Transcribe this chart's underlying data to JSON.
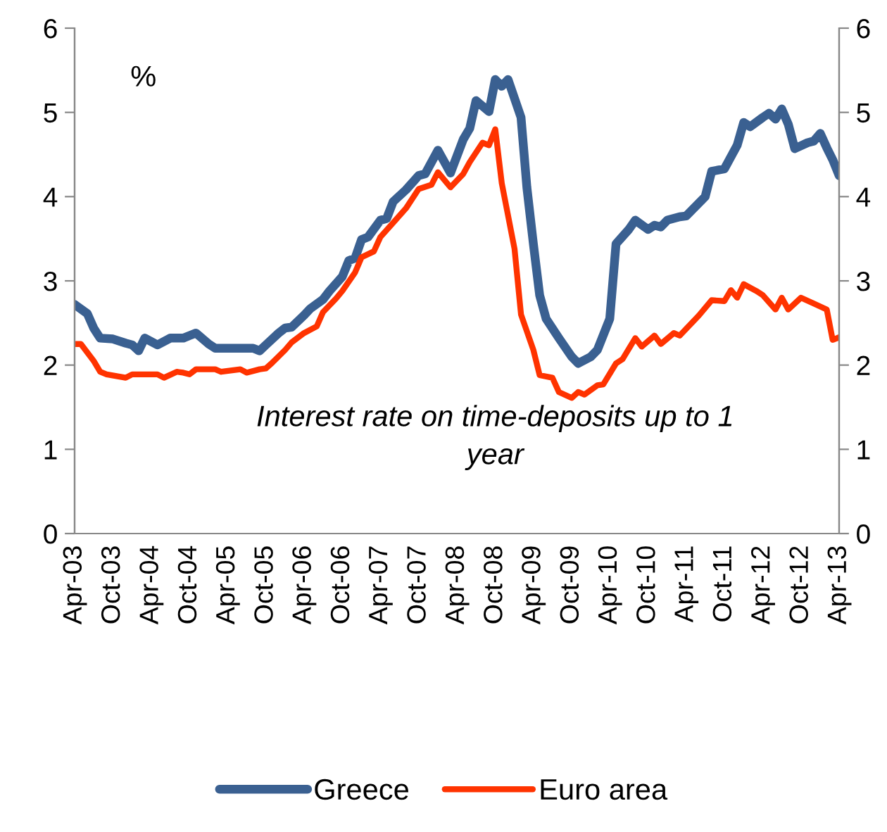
{
  "chart_data": {
    "type": "line",
    "ylabel": "%",
    "annotations": [
      "Interest rate on time-deposits up to 1 year"
    ],
    "xlim": [
      "2003-04",
      "2013-04"
    ],
    "xticks": [
      {
        "value": "2003-04",
        "label": "Apr-03"
      },
      {
        "value": "2003-10",
        "label": "Oct-03"
      },
      {
        "value": "2004-04",
        "label": "Apr-04"
      },
      {
        "value": "2004-10",
        "label": "Oct-04"
      },
      {
        "value": "2005-04",
        "label": "Apr-05"
      },
      {
        "value": "2005-10",
        "label": "Oct-05"
      },
      {
        "value": "2006-04",
        "label": "Apr-06"
      },
      {
        "value": "2006-10",
        "label": "Oct-06"
      },
      {
        "value": "2007-04",
        "label": "Apr-07"
      },
      {
        "value": "2007-10",
        "label": "Oct-07"
      },
      {
        "value": "2008-04",
        "label": "Apr-08"
      },
      {
        "value": "2008-10",
        "label": "Oct-08"
      },
      {
        "value": "2009-04",
        "label": "Apr-09"
      },
      {
        "value": "2009-10",
        "label": "Oct-09"
      },
      {
        "value": "2010-04",
        "label": "Apr-10"
      },
      {
        "value": "2010-10",
        "label": "Oct-10"
      },
      {
        "value": "2011-04",
        "label": "Apr-11"
      },
      {
        "value": "2011-10",
        "label": "Oct-11"
      },
      {
        "value": "2012-04",
        "label": "Apr-12"
      },
      {
        "value": "2012-10",
        "label": "Oct-12"
      },
      {
        "value": "2013-04",
        "label": "Apr-13"
      }
    ],
    "ylim": [
      0,
      6
    ],
    "yticks": [
      0,
      1,
      2,
      3,
      4,
      5,
      6
    ],
    "y2lim": [
      0,
      6
    ],
    "y2ticks": [
      0,
      1,
      2,
      3,
      4,
      5,
      6
    ],
    "grid": false,
    "legend": "bottom",
    "marker": "none",
    "line_style": "solid",
    "series": [
      {
        "name": "Greece",
        "color": "#3a6091",
        "x": [
          "2003-04",
          "2003-06",
          "2003-07",
          "2003-08",
          "2003-10",
          "2003-12",
          "2004-01",
          "2004-02",
          "2004-03",
          "2004-05",
          "2004-07",
          "2004-09",
          "2004-10",
          "2004-11",
          "2005-01",
          "2005-02",
          "2005-08",
          "2005-09",
          "2005-10",
          "2005-12",
          "2006-01",
          "2006-02",
          "2006-04",
          "2006-05",
          "2006-07",
          "2006-08",
          "2006-10",
          "2006-11",
          "2006-12",
          "2007-01",
          "2007-02",
          "2007-04",
          "2007-05",
          "2007-06",
          "2007-08",
          "2007-10",
          "2007-11",
          "2008-01",
          "2008-03",
          "2008-05",
          "2008-06",
          "2008-07",
          "2008-09",
          "2008-10",
          "2008-11",
          "2008-12",
          "2009-02",
          "2009-03",
          "2009-04",
          "2009-05",
          "2009-06",
          "2009-08",
          "2009-10",
          "2009-11",
          "2010-01",
          "2010-02",
          "2010-04",
          "2010-05",
          "2010-07",
          "2010-08",
          "2010-10",
          "2010-11",
          "2010-12",
          "2011-01",
          "2011-03",
          "2011-04",
          "2011-07",
          "2011-08",
          "2011-10",
          "2011-12",
          "2012-01",
          "2012-02",
          "2012-04",
          "2012-05",
          "2012-06",
          "2012-07",
          "2012-08",
          "2012-09",
          "2012-11",
          "2012-12",
          "2013-01",
          "2013-02",
          "2013-03",
          "2013-04"
        ],
        "values": [
          2.72,
          2.61,
          2.44,
          2.32,
          2.31,
          2.26,
          2.24,
          2.17,
          2.32,
          2.24,
          2.32,
          2.32,
          2.35,
          2.38,
          2.25,
          2.2,
          2.2,
          2.17,
          2.24,
          2.38,
          2.44,
          2.45,
          2.59,
          2.67,
          2.78,
          2.88,
          3.05,
          3.24,
          3.27,
          3.49,
          3.52,
          3.72,
          3.74,
          3.94,
          4.08,
          4.25,
          4.27,
          4.55,
          4.28,
          4.68,
          4.81,
          5.14,
          5.01,
          5.39,
          5.31,
          5.39,
          4.94,
          4.11,
          3.44,
          2.83,
          2.55,
          2.32,
          2.1,
          2.02,
          2.1,
          2.18,
          2.55,
          3.44,
          3.61,
          3.72,
          3.61,
          3.66,
          3.64,
          3.72,
          3.76,
          3.77,
          4.0,
          4.3,
          4.33,
          4.61,
          4.88,
          4.83,
          4.94,
          4.99,
          4.92,
          5.04,
          4.86,
          4.57,
          4.64,
          4.66,
          4.75,
          4.58,
          4.44,
          4.25
        ]
      },
      {
        "name": "Euro area",
        "color": "#ff3300",
        "x": [
          "2003-04",
          "2003-05",
          "2003-07",
          "2003-08",
          "2003-09",
          "2003-12",
          "2004-01",
          "2004-05",
          "2004-06",
          "2004-08",
          "2004-09",
          "2004-10",
          "2004-11",
          "2005-02",
          "2005-03",
          "2005-06",
          "2005-07",
          "2005-09",
          "2005-10",
          "2005-11",
          "2006-01",
          "2006-02",
          "2006-04",
          "2006-06",
          "2006-07",
          "2006-09",
          "2006-10",
          "2006-12",
          "2007-01",
          "2007-03",
          "2007-04",
          "2007-06",
          "2007-08",
          "2007-10",
          "2007-12",
          "2008-01",
          "2008-03",
          "2008-05",
          "2008-06",
          "2008-08",
          "2008-09",
          "2008-10",
          "2008-11",
          "2009-01",
          "2009-02",
          "2009-04",
          "2009-05",
          "2009-07",
          "2009-08",
          "2009-10",
          "2009-11",
          "2009-12",
          "2010-02",
          "2010-03",
          "2010-05",
          "2010-06",
          "2010-08",
          "2010-09",
          "2010-11",
          "2010-12",
          "2011-02",
          "2011-03",
          "2011-06",
          "2011-08",
          "2011-10",
          "2011-11",
          "2011-12",
          "2012-01",
          "2012-03",
          "2012-04",
          "2012-06",
          "2012-07",
          "2012-08",
          "2012-10",
          "2012-12",
          "2013-02",
          "2013-03",
          "2013-04"
        ],
        "values": [
          2.25,
          2.25,
          2.05,
          1.92,
          1.89,
          1.85,
          1.89,
          1.89,
          1.85,
          1.92,
          1.91,
          1.89,
          1.95,
          1.95,
          1.92,
          1.95,
          1.91,
          1.95,
          1.96,
          2.03,
          2.18,
          2.27,
          2.38,
          2.46,
          2.63,
          2.79,
          2.88,
          3.1,
          3.28,
          3.35,
          3.52,
          3.69,
          3.86,
          4.09,
          4.14,
          4.29,
          4.11,
          4.27,
          4.41,
          4.64,
          4.61,
          4.8,
          4.16,
          3.38,
          2.6,
          2.18,
          1.88,
          1.85,
          1.68,
          1.61,
          1.68,
          1.65,
          1.76,
          1.77,
          2.02,
          2.07,
          2.32,
          2.22,
          2.35,
          2.25,
          2.38,
          2.35,
          2.59,
          2.77,
          2.76,
          2.89,
          2.8,
          2.96,
          2.88,
          2.83,
          2.66,
          2.8,
          2.66,
          2.8,
          2.73,
          2.66,
          2.3,
          2.33
        ]
      }
    ]
  }
}
